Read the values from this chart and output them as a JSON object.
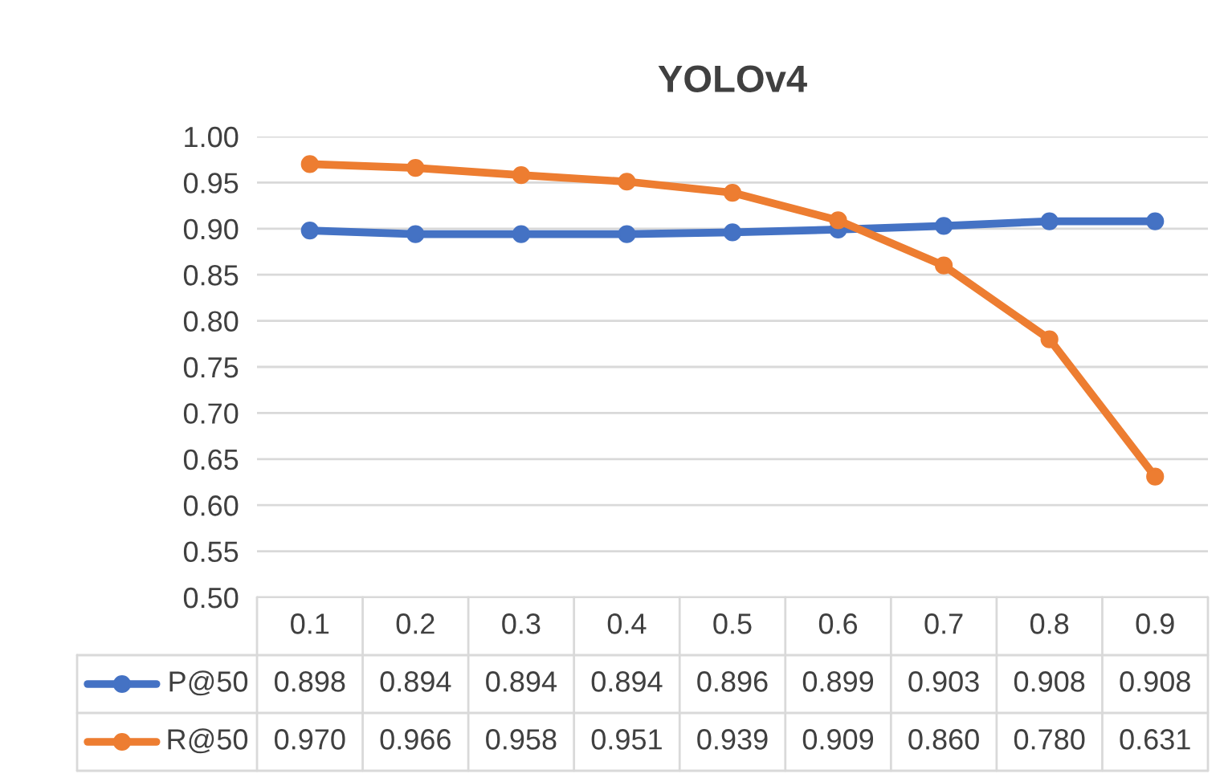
{
  "chart_data": {
    "type": "line",
    "title": "YOLOv4",
    "categories": [
      "0.1",
      "0.2",
      "0.3",
      "0.4",
      "0.5",
      "0.6",
      "0.7",
      "0.8",
      "0.9"
    ],
    "series": [
      {
        "name": "P@50",
        "color": "#4472c4",
        "values": [
          0.898,
          0.894,
          0.894,
          0.894,
          0.896,
          0.899,
          0.903,
          0.908,
          0.908
        ],
        "value_labels": [
          "0.898",
          "0.894",
          "0.894",
          "0.894",
          "0.896",
          "0.899",
          "0.903",
          "0.908",
          "0.908"
        ]
      },
      {
        "name": "R@50",
        "color": "#ed7d31",
        "values": [
          0.97,
          0.966,
          0.958,
          0.951,
          0.939,
          0.909,
          0.86,
          0.78,
          0.631
        ],
        "value_labels": [
          "0.970",
          "0.966",
          "0.958",
          "0.951",
          "0.939",
          "0.909",
          "0.860",
          "0.780",
          "0.631"
        ]
      }
    ],
    "ylim": [
      0.5,
      1.0
    ],
    "yticks": [
      {
        "value": 0.5,
        "label": "0.50"
      },
      {
        "value": 0.55,
        "label": "0.55"
      },
      {
        "value": 0.6,
        "label": "0.60"
      },
      {
        "value": 0.65,
        "label": "0.65"
      },
      {
        "value": 0.7,
        "label": "0.70"
      },
      {
        "value": 0.75,
        "label": "0.75"
      },
      {
        "value": 0.8,
        "label": "0.80"
      },
      {
        "value": 0.85,
        "label": "0.85"
      },
      {
        "value": 0.9,
        "label": "0.90"
      },
      {
        "value": 0.95,
        "label": "0.95"
      },
      {
        "value": 1.0,
        "label": "1.00"
      }
    ],
    "grid": "y",
    "marker": "circle",
    "line_style": "solid",
    "legend": "bottom"
  }
}
